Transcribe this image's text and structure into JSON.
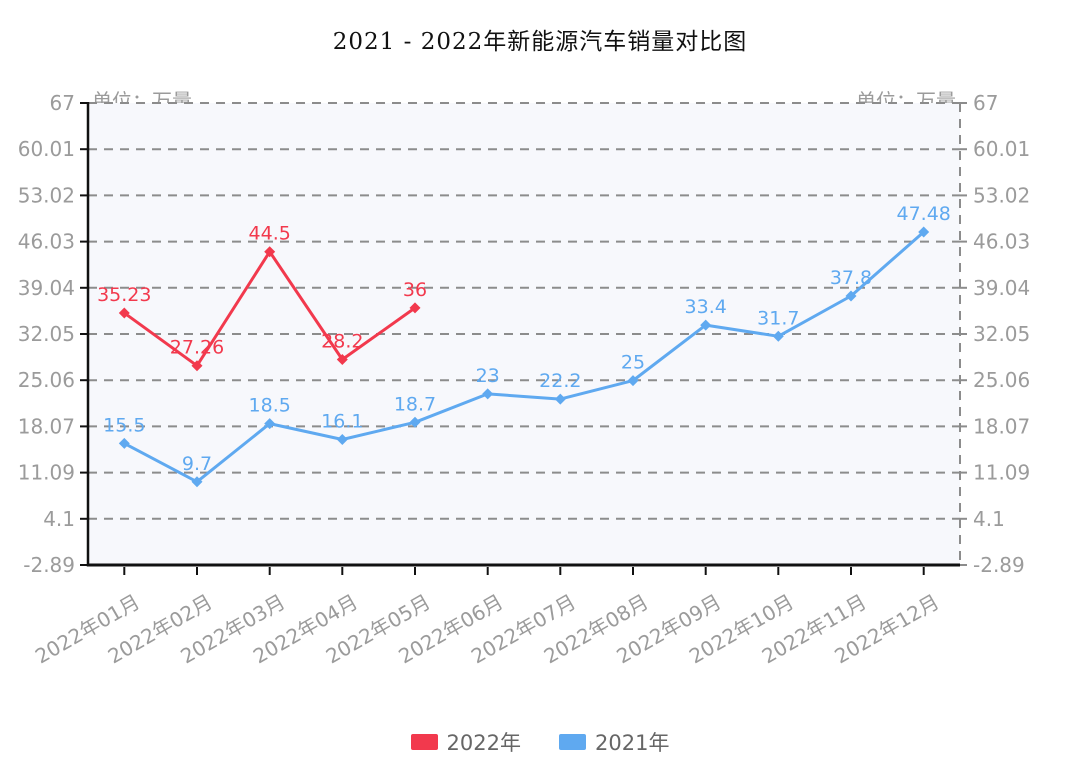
{
  "title": "2021 - 2022年新能源汽车销量对比图",
  "axis": {
    "unit_left": "单位：万量",
    "unit_right": "单位：万量"
  },
  "legend": {
    "items": [
      {
        "label": "2022年",
        "color": "#f2394d"
      },
      {
        "label": "2021年",
        "color": "#5fa9f0"
      }
    ]
  },
  "chart_data": {
    "type": "line",
    "title": "2021 - 2022年新能源汽车销量对比图",
    "categories": [
      "2022年01月",
      "2022年02月",
      "2022年03月",
      "2022年04月",
      "2022年05月",
      "2022年06月",
      "2022年07月",
      "2022年08月",
      "2022年09月",
      "2022年10月",
      "2022年11月",
      "2022年12月"
    ],
    "series": [
      {
        "name": "2022年",
        "color": "#f2394d",
        "values": [
          35.23,
          27.26,
          44.5,
          28.2,
          36,
          null,
          null,
          null,
          null,
          null,
          null,
          null
        ]
      },
      {
        "name": "2021年",
        "color": "#5fa9f0",
        "values": [
          15.5,
          9.7,
          18.5,
          16.1,
          18.7,
          23,
          22.2,
          25,
          33.4,
          31.7,
          37.8,
          47.48
        ]
      }
    ],
    "ylabel": "单位：万量",
    "ylim": [
      -2.89,
      67
    ],
    "yticks": [
      "67",
      "60.01",
      "53.02",
      "46.03",
      "39.04",
      "32.05",
      "25.06",
      "18.07",
      "11.09",
      "4.1",
      "-2.89"
    ],
    "grid": true,
    "gridline_color": "#8c8c8c",
    "plot_background": "#f7f8fc",
    "axis_text_color": "#9b9b9b",
    "legend_position": "bottom",
    "marker": "diamond"
  }
}
